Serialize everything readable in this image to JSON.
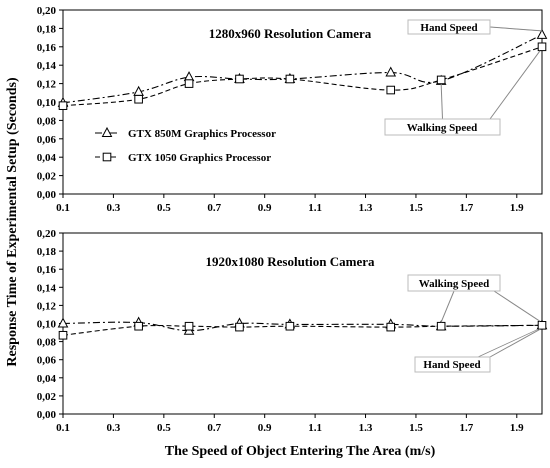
{
  "ylabel": "Response Time of Experimental Setup (Seconds)",
  "xlabel": "The Speed of Object Entering The Area (m/s)",
  "colors": {
    "line": "#000000",
    "marker_fill": "#ffffff",
    "axis": "#000000",
    "annot_box": "#ffffff"
  },
  "chart_data": [
    {
      "type": "line",
      "title": "1280x960 Resolution Camera",
      "x": [
        0.1,
        0.4,
        0.6,
        0.8,
        1.0,
        1.4,
        1.6,
        2.0
      ],
      "xticks": [
        "0.1",
        "0.3",
        "0.5",
        "0.7",
        "0.9",
        "1.1",
        "1.3",
        "1.5",
        "1.7",
        "1.9"
      ],
      "yticks": [
        "0,00",
        "0,02",
        "0,04",
        "0,06",
        "0,08",
        "0,10",
        "0,12",
        "0,14",
        "0,16",
        "0,18",
        "0,20"
      ],
      "xlim": [
        0.1,
        2.0
      ],
      "ylim": [
        0.0,
        0.2
      ],
      "series": [
        {
          "name": "GTX 850M Graphics Processor",
          "marker": "triangle",
          "dash": "dashdot",
          "values": [
            0.099,
            0.111,
            0.127,
            0.125,
            0.125,
            0.132,
            0.123,
            0.173
          ]
        },
        {
          "name": "GTX 1050 Graphics Processor",
          "marker": "square",
          "dash": "dash",
          "values": [
            0.096,
            0.103,
            0.12,
            0.125,
            0.125,
            0.113,
            0.124,
            0.16
          ]
        }
      ],
      "legend_position": "lower-left",
      "annotations": [
        "Hand Speed",
        "Walking Speed"
      ]
    },
    {
      "type": "line",
      "title": "1920x1080 Resolution Camera",
      "x": [
        0.1,
        0.4,
        0.6,
        0.8,
        1.0,
        1.4,
        1.6,
        2.0
      ],
      "xticks": [
        "0.1",
        "0.3",
        "0.5",
        "0.7",
        "0.9",
        "1.1",
        "1.3",
        "1.5",
        "1.7",
        "1.9"
      ],
      "yticks": [
        "0,00",
        "0,02",
        "0,04",
        "0,06",
        "0,08",
        "0,10",
        "0,12",
        "0,14",
        "0,16",
        "0,18",
        "0,20"
      ],
      "xlim": [
        0.1,
        2.0
      ],
      "ylim": [
        0.0,
        0.2
      ],
      "series": [
        {
          "name": "GTX 850M Graphics Processor",
          "marker": "triangle",
          "dash": "dashdot",
          "values": [
            0.1,
            0.101,
            0.092,
            0.1,
            0.099,
            0.099,
            0.097,
            0.098
          ]
        },
        {
          "name": "GTX 1050 Graphics Processor",
          "marker": "square",
          "dash": "dash",
          "values": [
            0.087,
            0.097,
            0.097,
            0.096,
            0.097,
            0.096,
            0.097,
            0.098
          ]
        }
      ],
      "annotations": [
        "Walking Speed",
        "Hand Speed"
      ]
    }
  ]
}
